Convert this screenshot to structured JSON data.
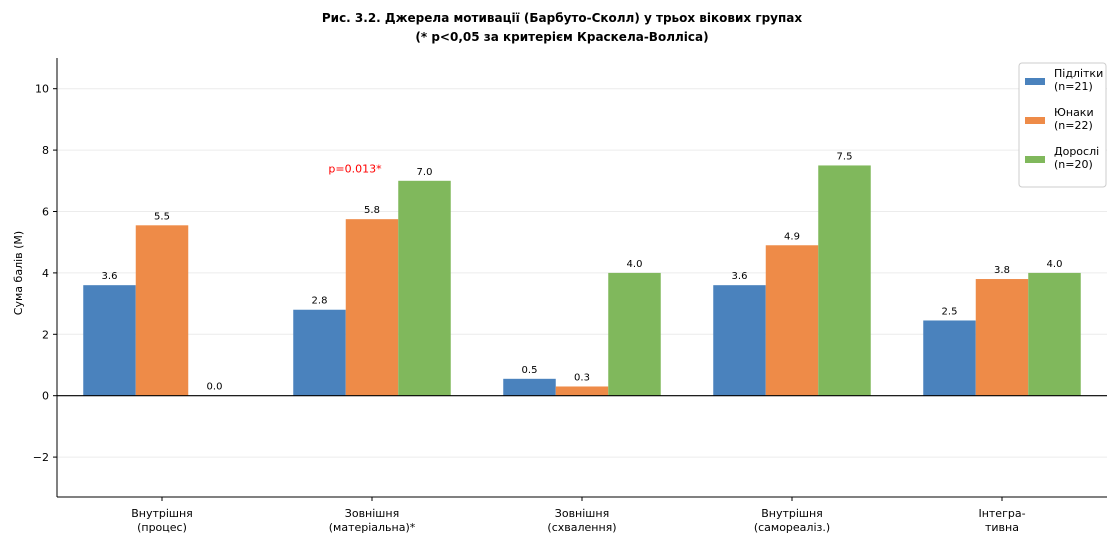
{
  "chart_data": {
    "type": "bar",
    "title_line1": "Рис. 3.2. Джерела мотивації (Барбуто-Сколл) у трьох вікових групах",
    "title_line2": "(* p<0,05 за критерієм Краскела-Волліса)",
    "ylabel": "Сума балів (M)",
    "xlabel": "",
    "ylim": [
      -3.3,
      11
    ],
    "yticks": [
      -2,
      0,
      2,
      4,
      6,
      8,
      10
    ],
    "ytick_labels": [
      "−2",
      "0",
      "2",
      "4",
      "6",
      "8",
      "10"
    ],
    "grid": true,
    "categories": [
      [
        "Внутрішня",
        "(процес)"
      ],
      [
        "Зовнішня",
        "(матеріальна)*"
      ],
      [
        "Зовнішня",
        "(схвалення)"
      ],
      [
        "Внутрішня",
        "(самореаліз.)"
      ],
      [
        "Інтегра-",
        "тивна"
      ]
    ],
    "series": [
      {
        "name": [
          "Підлітки",
          "(n=21)"
        ],
        "color": "#4a82bd",
        "values": [
          3.6,
          2.8,
          0.55,
          3.6,
          2.45
        ],
        "labels": [
          "3.6",
          "2.8",
          "0.5",
          "3.6",
          "2.5"
        ]
      },
      {
        "name": [
          "Юнаки",
          "(n=22)"
        ],
        "color": "#ee8b48",
        "values": [
          5.55,
          5.75,
          0.3,
          4.9,
          3.8
        ],
        "labels": [
          "5.5",
          "5.8",
          "0.3",
          "4.9",
          "3.8"
        ]
      },
      {
        "name": [
          "Дорослі",
          "(n=20)"
        ],
        "color": "#80b85c",
        "values": [
          0.0,
          7.0,
          4.0,
          7.5,
          4.0
        ],
        "labels": [
          "0.0",
          "7.0",
          "4.0",
          "7.5",
          "4.0"
        ]
      }
    ],
    "annotations": [
      {
        "text": "p=0.013*",
        "category_index": 1,
        "y": 7.4,
        "color": "#ff0000"
      }
    ],
    "legend_position": "top-right"
  }
}
